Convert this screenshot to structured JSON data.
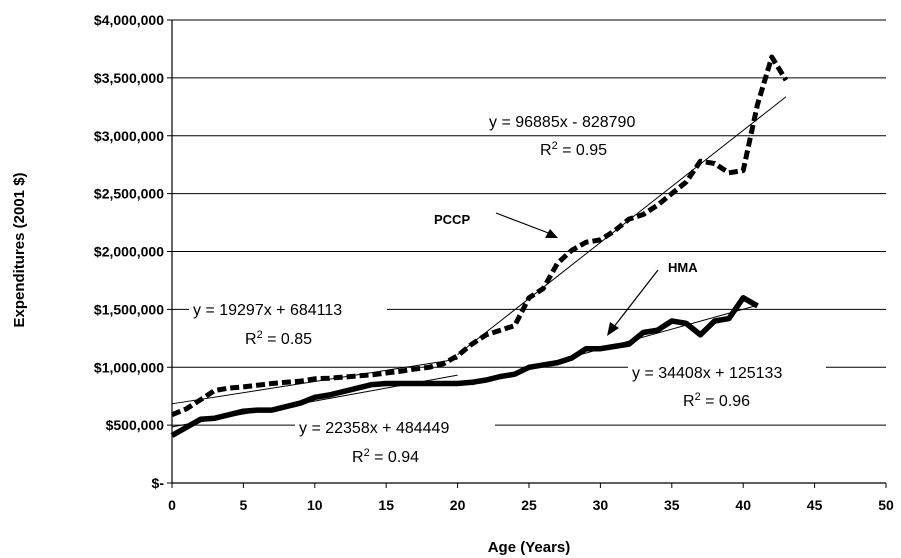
{
  "chart_data": {
    "type": "line",
    "xlabel": "Age (Years)",
    "ylabel": "Expenditures (2001 $)",
    "xlim": [
      0,
      50
    ],
    "ylim": [
      0,
      4000000
    ],
    "x_ticks": [
      "0",
      "5",
      "10",
      "15",
      "20",
      "25",
      "30",
      "35",
      "40",
      "45",
      "50"
    ],
    "y_ticks": [
      "$-",
      "$500,000",
      "$1,000,000",
      "$1,500,000",
      "$2,000,000",
      "$2,500,000",
      "$3,000,000",
      "$3,500,000",
      "$4,000,000"
    ],
    "grid": "horizontal",
    "series": [
      {
        "name": "PCCP",
        "style": "dashed",
        "x": [
          0,
          1,
          2,
          3,
          4,
          5,
          6,
          7,
          8,
          9,
          10,
          11,
          12,
          13,
          14,
          15,
          16,
          17,
          18,
          19,
          20,
          21,
          22,
          23,
          24,
          25,
          26,
          27,
          28,
          29,
          30,
          31,
          32,
          33,
          34,
          35,
          36,
          37,
          38,
          39,
          40,
          41,
          42,
          43
        ],
        "values": [
          590000,
          640000,
          720000,
          800000,
          820000,
          830000,
          845000,
          860000,
          870000,
          880000,
          900000,
          905000,
          915000,
          925000,
          935000,
          950000,
          965000,
          985000,
          1000000,
          1030000,
          1100000,
          1200000,
          1280000,
          1320000,
          1360000,
          1600000,
          1680000,
          1900000,
          2010000,
          2080000,
          2100000,
          2180000,
          2280000,
          2320000,
          2400000,
          2500000,
          2600000,
          2780000,
          2760000,
          2680000,
          2700000,
          3270000,
          3680000,
          3480000
        ]
      },
      {
        "name": "HMA",
        "style": "solid",
        "x": [
          0,
          1,
          2,
          3,
          4,
          5,
          6,
          7,
          8,
          9,
          10,
          11,
          12,
          13,
          14,
          15,
          16,
          17,
          18,
          19,
          20,
          21,
          22,
          23,
          24,
          25,
          26,
          27,
          28,
          29,
          30,
          31,
          32,
          33,
          34,
          35,
          36,
          37,
          38,
          39,
          40,
          41
        ],
        "values": [
          410000,
          480000,
          550000,
          560000,
          590000,
          620000,
          630000,
          630000,
          660000,
          690000,
          740000,
          760000,
          790000,
          820000,
          850000,
          860000,
          860000,
          860000,
          860000,
          860000,
          860000,
          870000,
          890000,
          920000,
          940000,
          1000000,
          1020000,
          1040000,
          1080000,
          1160000,
          1160000,
          1180000,
          1200000,
          1300000,
          1320000,
          1400000,
          1380000,
          1280000,
          1400000,
          1420000,
          1600000,
          1530000
        ]
      }
    ],
    "trendlines": [
      {
        "name": "PCCP late",
        "slope": 96885,
        "intercept": -828790,
        "x_range": [
          20,
          43
        ]
      },
      {
        "name": "PCCP early",
        "slope": 19297,
        "intercept": 684113,
        "x_range": [
          0,
          20
        ]
      },
      {
        "name": "HMA early",
        "slope": 22358,
        "intercept": 484449,
        "x_range": [
          0,
          20
        ]
      },
      {
        "name": "HMA late",
        "slope": 34408,
        "intercept": 125133,
        "x_range": [
          21,
          41
        ]
      }
    ],
    "annotations": [
      {
        "eq": "y = 96885x - 828790",
        "r2_value": "= 0.95"
      },
      {
        "eq": "y = 19297x + 684113",
        "r2_value": "= 0.85"
      },
      {
        "eq": "y = 22358x + 484449",
        "r2_value": "= 0.94"
      },
      {
        "eq": "y = 34408x + 125133",
        "r2_value": "= 0.96"
      }
    ],
    "series_labels": [
      "PCCP",
      "HMA"
    ]
  }
}
